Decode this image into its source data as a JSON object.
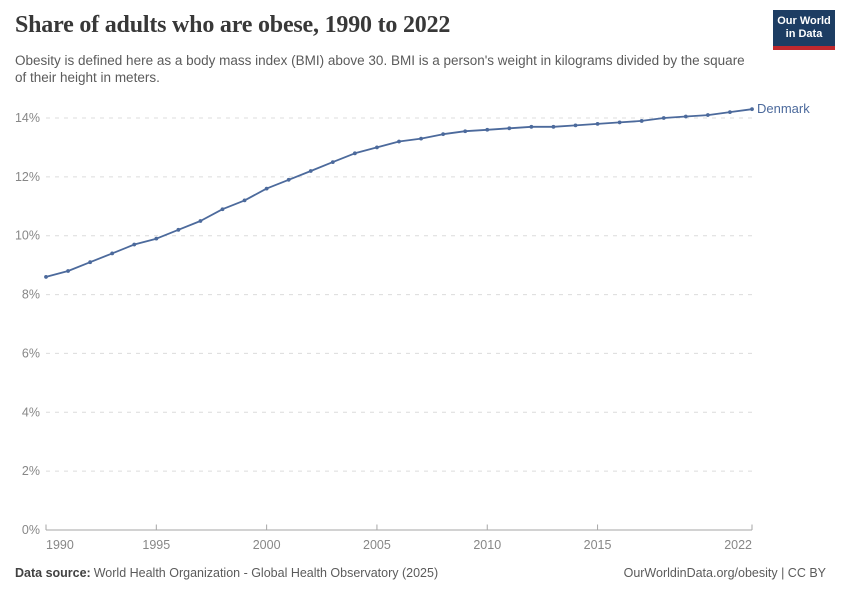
{
  "header": {
    "title": "Share of adults who are obese, 1990 to 2022",
    "subtitle": "Obesity is defined here as a body mass index (BMI) above 30. BMI is a person's weight in kilograms divided by the square of their height in meters.",
    "logo": {
      "line1": "Our World",
      "line2": "in Data",
      "bg_color": "#1d3d63",
      "accent_color": "#c0282d"
    }
  },
  "chart_data": {
    "type": "line",
    "title": "Share of adults who are obese, 1990 to 2022",
    "xlabel": "",
    "ylabel": "",
    "xlim": [
      1990,
      2022
    ],
    "ylim": [
      0,
      14
    ],
    "grid": "horizontal-dashed",
    "x_ticks": [
      1990,
      1995,
      2000,
      2005,
      2010,
      2015,
      2022
    ],
    "y_ticks": [
      0,
      2,
      4,
      6,
      8,
      10,
      12,
      14
    ],
    "y_tick_suffix": "%",
    "x": [
      1990,
      1991,
      1992,
      1993,
      1994,
      1995,
      1996,
      1997,
      1998,
      1999,
      2000,
      2001,
      2002,
      2003,
      2004,
      2005,
      2006,
      2007,
      2008,
      2009,
      2010,
      2011,
      2012,
      2013,
      2014,
      2015,
      2016,
      2017,
      2018,
      2019,
      2020,
      2021,
      2022
    ],
    "series": [
      {
        "name": "Denmark",
        "color": "#4c6a9c",
        "values": [
          8.6,
          8.8,
          9.1,
          9.4,
          9.7,
          9.9,
          10.2,
          10.5,
          10.9,
          11.2,
          11.6,
          11.9,
          12.2,
          12.5,
          12.8,
          13.0,
          13.2,
          13.3,
          13.45,
          13.55,
          13.6,
          13.65,
          13.7,
          13.7,
          13.75,
          13.8,
          13.85,
          13.9,
          14.0,
          14.05,
          14.1,
          14.2,
          14.3
        ]
      }
    ],
    "legend_position": "end-of-line-label",
    "colors": {
      "grid": "#dcdcdc",
      "axis": "#a6a6a6",
      "tick_text": "#878787"
    }
  },
  "footer": {
    "source_label": "Data source:",
    "source_text": "World Health Organization - Global Health Observatory (2025)",
    "credit": "OurWorldinData.org/obesity | CC BY"
  }
}
